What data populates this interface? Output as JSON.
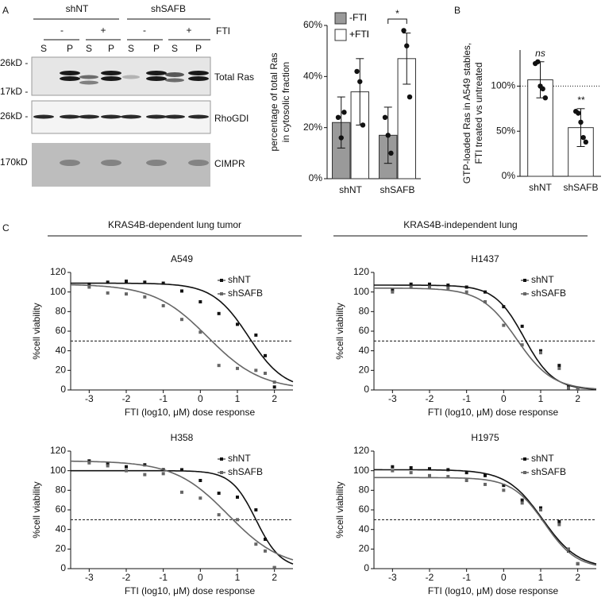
{
  "panel_labels": [
    "A",
    "B",
    "C"
  ],
  "blot": {
    "groups": [
      "shNT",
      "shSAFB"
    ],
    "treatment_signs": [
      "-",
      "+",
      "-",
      "+"
    ],
    "treatment_label": "FTI",
    "fractions": [
      "S",
      "P",
      "S",
      "P",
      "S",
      "P",
      "S",
      "P"
    ],
    "markers": [
      "26kD -",
      "17kD -",
      "26kD -",
      "170kD"
    ],
    "rows": [
      "Total Ras",
      "RhoGDI",
      "CIMPR"
    ]
  },
  "panel_c_headers": [
    "KRAS4B-dependent lung tumor",
    "KRAS4B-independent lung"
  ],
  "chart_data": [
    {
      "type": "bar",
      "ylabel": [
        "percentage of total Ras",
        "in cytosolic fraction"
      ],
      "categories": [
        "shNT",
        "shSAFB"
      ],
      "series": [
        {
          "name": "-FTI",
          "color": "#9a9a9a",
          "values": [
            22,
            17
          ],
          "errors": [
            10,
            11
          ],
          "points": [
            [
              24,
              16,
              26
            ],
            [
              24,
              17,
              10
            ]
          ]
        },
        {
          "name": "+FTI",
          "color": "#ffffff",
          "values": [
            34,
            47
          ],
          "errors": [
            13,
            10
          ],
          "points": [
            [
              42,
              38,
              21
            ],
            [
              58,
              52,
              32
            ]
          ]
        }
      ],
      "ylim": [
        0,
        60
      ],
      "yticks": [
        {
          "value": 0,
          "label": "0%"
        },
        {
          "value": 20,
          "label": "20%"
        },
        {
          "value": 40,
          "label": "40%"
        },
        {
          "value": 60,
          "label": "60%"
        }
      ],
      "significance": {
        "category": "shSAFB",
        "label": "*"
      },
      "legend": "upper left"
    },
    {
      "type": "bar",
      "ylabel": [
        "GTP-loaded Ras in A549 stables,",
        "FTI treated vs untreated"
      ],
      "categories": [
        "shNT",
        "shSAFB"
      ],
      "series": [
        {
          "color": "#ffffff",
          "values": [
            107,
            54
          ],
          "errors": [
            20,
            21
          ],
          "points": [
            [
              125,
              127,
              100,
              97,
              87
            ],
            [
              72,
              70,
              60,
              43,
              38
            ]
          ]
        }
      ],
      "ylim": [
        0,
        140
      ],
      "yticks": [
        {
          "value": 0,
          "label": "0%"
        },
        {
          "value": 50,
          "label": "50%"
        },
        {
          "value": 100,
          "label": "100%"
        }
      ],
      "reference_line": 100,
      "annotations": [
        "ns",
        "**"
      ]
    },
    {
      "type": "dose_response",
      "title": "A549",
      "xlabel": "FTI  (log10, μM) dose response",
      "ylabel": "%cell viability",
      "x": [
        -3,
        -2.5,
        -2,
        -1.5,
        -1,
        -0.5,
        0,
        0.5,
        1,
        1.5,
        1.75,
        2
      ],
      "series": [
        {
          "name": "shNT",
          "color": "#111111",
          "values": [
            108,
            110,
            111,
            110,
            109,
            101,
            90,
            78,
            67,
            56,
            35,
            3
          ],
          "fit": {
            "top": 109,
            "bottom": 0,
            "log_ic50": 1.3,
            "hill": 0.9
          }
        },
        {
          "name": "shSAFB",
          "color": "#666666",
          "values": [
            105,
            99,
            98,
            95,
            86,
            72,
            59,
            25,
            22,
            20,
            17,
            8
          ],
          "fit": {
            "top": 108,
            "bottom": 0,
            "log_ic50": 0.2,
            "hill": 0.6
          }
        }
      ],
      "xlim": [
        -3.5,
        2.5
      ],
      "xticks": [
        -3,
        -2,
        -1,
        0,
        1,
        2
      ],
      "ylim": [
        0,
        120
      ],
      "yticks": [
        0,
        20,
        40,
        60,
        80,
        100,
        120
      ],
      "reference_line": 50,
      "legend": "upper right"
    },
    {
      "type": "dose_response",
      "title": "H1437",
      "xlabel": "FTI  (log10, μM) dose response",
      "ylabel": "%cell viability",
      "x": [
        -3,
        -2.5,
        -2,
        -1.5,
        -1,
        -0.5,
        0,
        0.5,
        1,
        1.5,
        1.75,
        2
      ],
      "series": [
        {
          "name": "shNT",
          "color": "#111111",
          "values": [
            102,
            108,
            108,
            107,
            105,
            100,
            85,
            65,
            40,
            25,
            3,
            1
          ],
          "fit": {
            "top": 107,
            "bottom": 0,
            "log_ic50": 0.55,
            "hill": 1.1
          }
        },
        {
          "name": "shSAFB",
          "color": "#666666",
          "values": [
            100,
            105,
            105,
            104,
            100,
            90,
            66,
            46,
            38,
            22,
            2,
            1
          ],
          "fit": {
            "top": 104,
            "bottom": 0,
            "log_ic50": 0.35,
            "hill": 0.9
          }
        }
      ],
      "xlim": [
        -3.5,
        2.5
      ],
      "xticks": [
        -3,
        -2,
        -1,
        0,
        1,
        2
      ],
      "ylim": [
        0,
        120
      ],
      "yticks": [
        0,
        20,
        40,
        60,
        80,
        100,
        120
      ],
      "reference_line": 50,
      "legend": "upper right"
    },
    {
      "type": "dose_response",
      "title": "H358",
      "xlabel": "FTI  (log10, μM) dose response",
      "ylabel": "%cell viability",
      "x": [
        -3,
        -2.5,
        -2,
        -1.5,
        -1,
        -0.5,
        0,
        0.5,
        1,
        1.5,
        1.75,
        2
      ],
      "series": [
        {
          "name": "shNT",
          "color": "#111111",
          "values": [
            110,
            107,
            104,
            106,
            101,
            101,
            90,
            77,
            73,
            60,
            30,
            1
          ],
          "fit": {
            "top": 100,
            "bottom": 0,
            "log_ic50": 1.5,
            "hill": 1.3
          }
        },
        {
          "name": "shSAFB",
          "color": "#666666",
          "values": [
            108,
            105,
            100,
            96,
            97,
            78,
            72,
            55,
            50,
            25,
            18,
            1
          ],
          "fit": {
            "top": 110,
            "bottom": 0,
            "log_ic50": 0.75,
            "hill": 0.6
          }
        }
      ],
      "xlim": [
        -3.5,
        2.5
      ],
      "xticks": [
        -3,
        -2,
        -1,
        0,
        1,
        2
      ],
      "ylim": [
        0,
        120
      ],
      "yticks": [
        0,
        20,
        40,
        60,
        80,
        100,
        120
      ],
      "reference_line": 50,
      "legend": "upper right"
    },
    {
      "type": "dose_response",
      "title": "H1975",
      "xlabel": "FTI  (log10, μM) dose response",
      "ylabel": "%cell viability",
      "x": [
        -3,
        -2.5,
        -2,
        -1.5,
        -1,
        -0.5,
        0,
        0.5,
        1,
        1.5,
        1.75,
        2
      ],
      "series": [
        {
          "name": "shNT",
          "color": "#111111",
          "values": [
            104,
            103,
            102,
            101,
            98,
            95,
            85,
            70,
            62,
            48,
            18,
            5
          ],
          "fit": {
            "top": 101,
            "bottom": 0,
            "log_ic50": 1.05,
            "hill": 0.9
          }
        },
        {
          "name": "shSAFB",
          "color": "#666666",
          "values": [
            100,
            98,
            95,
            94,
            90,
            86,
            80,
            67,
            60,
            45,
            20,
            5
          ],
          "fit": {
            "top": 93,
            "bottom": 0,
            "log_ic50": 1.1,
            "hill": 1.0
          }
        }
      ],
      "xlim": [
        -3.5,
        2.5
      ],
      "xticks": [
        -3,
        -2,
        -1,
        0,
        1,
        2
      ],
      "ylim": [
        0,
        120
      ],
      "yticks": [
        0,
        20,
        40,
        60,
        80,
        100,
        120
      ],
      "reference_line": 50,
      "legend": "upper right"
    }
  ]
}
